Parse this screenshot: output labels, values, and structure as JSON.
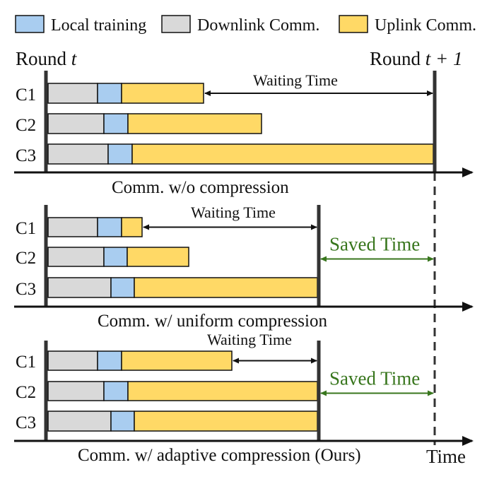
{
  "legend": {
    "local": {
      "label": "Local training",
      "color": "#a9cdf0"
    },
    "downlink": {
      "label": "Downlink Comm.",
      "color": "#d9d9d9"
    },
    "uplink": {
      "label": "Uplink Comm.",
      "color": "#ffd966"
    }
  },
  "round_start": {
    "prefix": "Round ",
    "var": "t"
  },
  "round_end": {
    "prefix": "Round ",
    "expr": "t + 1"
  },
  "time_label": "Time",
  "saved_color": "#38761d",
  "panels": [
    {
      "caption": "Comm. w/o compression",
      "waiting_label": "Waiting Time",
      "clients": [
        {
          "label": "C1",
          "downlink": 70,
          "local": 34,
          "uplink": 116
        },
        {
          "label": "C2",
          "downlink": 79,
          "local": 34,
          "uplink": 189
        },
        {
          "label": "C3",
          "downlink": 85,
          "local": 34,
          "uplink": 426
        }
      ]
    },
    {
      "caption": "Comm. w/ uniform compression",
      "waiting_label": "Waiting Time",
      "saved_label": "Saved Time",
      "clients": [
        {
          "label": "C1",
          "downlink": 70,
          "local": 34,
          "uplink": 29
        },
        {
          "label": "C2",
          "downlink": 79,
          "local": 33,
          "uplink": 87
        },
        {
          "label": "C3",
          "downlink": 89,
          "local": 33,
          "uplink": 259
        }
      ]
    },
    {
      "caption": "Comm. w/ adaptive compression (Ours)",
      "waiting_label": "Waiting Time",
      "saved_label": "Saved Time",
      "clients": [
        {
          "label": "C1",
          "downlink": 70,
          "local": 34,
          "uplink": 156
        },
        {
          "label": "C2",
          "downlink": 79,
          "local": 34,
          "uplink": 268
        },
        {
          "label": "C3",
          "downlink": 89,
          "local": 33,
          "uplink": 259
        }
      ]
    }
  ]
}
